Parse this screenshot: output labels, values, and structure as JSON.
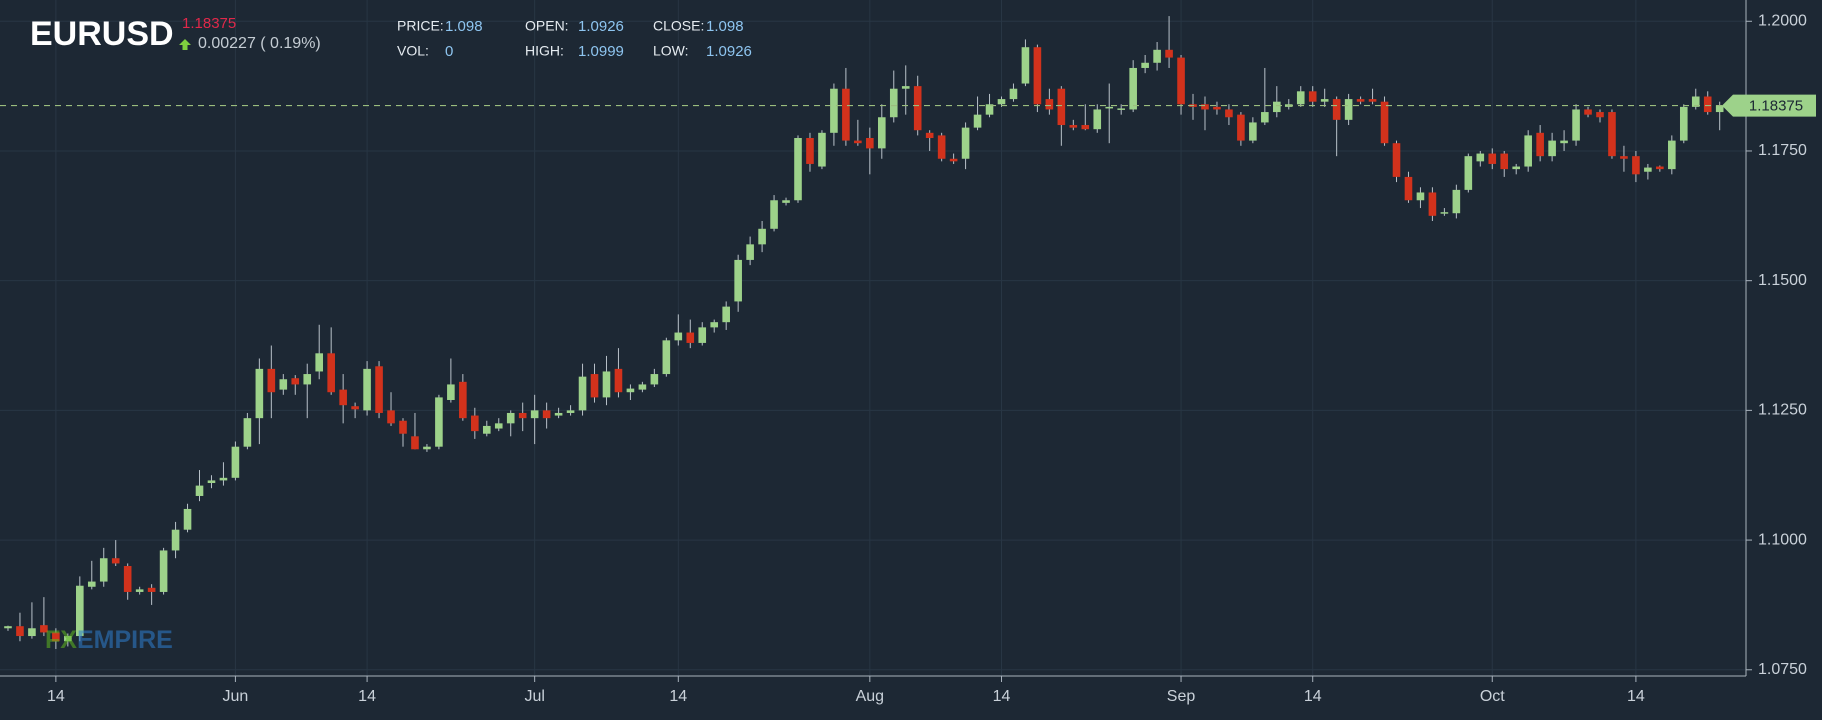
{
  "chart_data": {
    "type": "candlestick",
    "symbol": "EURUSD",
    "last_price": 1.18375,
    "change": "0.00227 ( 0.19%)",
    "stats": [
      {
        "label": "PRICE:",
        "value": "1.098"
      },
      {
        "label": "VOL:",
        "value": "0"
      },
      {
        "label": "OPEN:",
        "value": "1.0926"
      },
      {
        "label": "HIGH:",
        "value": "1.0999"
      },
      {
        "label": "CLOSE:",
        "value": "1.098"
      },
      {
        "label": "LOW:",
        "value": "1.0926"
      }
    ],
    "watermark": [
      "FX",
      "EMPIRE"
    ],
    "up_color": "#9dd28a",
    "down_color": "#d2321c",
    "grid": true,
    "ylim": [
      1.0738,
      1.2041
    ],
    "yticks": [
      {
        "value": 1.075,
        "label": "1.0750"
      },
      {
        "value": 1.1,
        "label": "1.1000"
      },
      {
        "value": 1.125,
        "label": "1.1250"
      },
      {
        "value": 1.15,
        "label": "1.1500"
      },
      {
        "value": 1.175,
        "label": "1.1750"
      },
      {
        "value": 1.2,
        "label": "1.2000"
      }
    ],
    "categories": [
      null,
      null,
      null,
      null,
      "14",
      null,
      null,
      null,
      null,
      null,
      null,
      null,
      null,
      null,
      null,
      null,
      null,
      null,
      null,
      "Jun",
      null,
      null,
      null,
      null,
      null,
      null,
      null,
      null,
      null,
      null,
      "14",
      null,
      null,
      null,
      null,
      null,
      null,
      null,
      null,
      null,
      null,
      null,
      null,
      null,
      "Jul",
      null,
      null,
      null,
      null,
      null,
      null,
      null,
      null,
      null,
      null,
      null,
      "14",
      null,
      null,
      null,
      null,
      null,
      null,
      null,
      null,
      null,
      null,
      null,
      null,
      null,
      null,
      null,
      "Aug",
      null,
      null,
      null,
      null,
      null,
      null,
      null,
      null,
      null,
      null,
      "14",
      null,
      null,
      null,
      null,
      null,
      null,
      null,
      null,
      null,
      null,
      null,
      null,
      null,
      null,
      "Sep",
      null,
      null,
      null,
      null,
      null,
      null,
      null,
      null,
      null,
      null,
      "14",
      null,
      null,
      null,
      null,
      null,
      null,
      null,
      null,
      null,
      null,
      null,
      null,
      null,
      null,
      "Oct",
      null,
      null,
      null,
      null,
      null,
      null,
      null,
      null,
      null,
      null,
      null,
      "14",
      null,
      null,
      null,
      null,
      null,
      null,
      null
    ],
    "open": [
      1.083,
      1.0834,
      1.0815,
      1.0836,
      1.0822,
      1.0805,
      1.0815,
      1.091,
      1.092,
      1.0965,
      1.095,
      1.09,
      1.0908,
      1.09,
      1.098,
      1.102,
      1.1085,
      1.111,
      1.1115,
      1.112,
      1.118,
      1.1235,
      1.133,
      1.129,
      1.1312,
      1.13,
      1.1325,
      1.136,
      1.129,
      1.1258,
      1.125,
      1.1335,
      1.125,
      1.123,
      1.12,
      1.1175,
      1.118,
      1.127,
      1.1305,
      1.124,
      1.1205,
      1.1215,
      1.1225,
      1.1245,
      1.1235,
      1.125,
      1.124,
      1.1245,
      1.125,
      1.132,
      1.1275,
      1.133,
      1.1285,
      1.129,
      1.13,
      1.132,
      1.1385,
      1.14,
      1.138,
      1.141,
      1.142,
      1.146,
      1.154,
      1.157,
      1.16,
      1.165,
      1.1655,
      1.1775,
      1.172,
      1.1785,
      1.187,
      1.177,
      1.1775,
      1.1755,
      1.1815,
      1.187,
      1.1875,
      1.1785,
      1.178,
      1.1735,
      1.1735,
      1.1795,
      1.182,
      1.184,
      1.185,
      1.188,
      1.195,
      1.185,
      1.187,
      1.18,
      1.18,
      1.1792,
      1.1832,
      1.183,
      1.183,
      1.191,
      1.192,
      1.1945,
      1.193,
      1.184,
      1.184,
      1.1835,
      1.183,
      1.182,
      1.177,
      1.1805,
      1.1825,
      1.1835,
      1.184,
      1.1865,
      1.1845,
      1.185,
      1.181,
      1.185,
      1.185,
      1.1845,
      1.1765,
      1.17,
      1.1655,
      1.167,
      1.163,
      1.163,
      1.1675,
      1.173,
      1.1745,
      1.1745,
      1.1715,
      1.172,
      1.1785,
      1.174,
      1.1765,
      1.177,
      1.183,
      1.1825,
      1.1825,
      1.174,
      1.174,
      1.171,
      1.172,
      1.1715,
      1.177,
      1.1835,
      1.1855,
      1.1825
    ],
    "high": [
      1.0835,
      1.086,
      1.088,
      1.089,
      1.083,
      1.082,
      1.093,
      1.096,
      1.0985,
      1.1,
      1.0955,
      1.091,
      1.0915,
      1.0985,
      1.1035,
      1.107,
      1.1135,
      1.1125,
      1.115,
      1.119,
      1.1245,
      1.135,
      1.1375,
      1.132,
      1.1318,
      1.134,
      1.1415,
      1.141,
      1.132,
      1.1265,
      1.1345,
      1.1345,
      1.1285,
      1.1235,
      1.1245,
      1.1185,
      1.128,
      1.135,
      1.132,
      1.1255,
      1.123,
      1.1235,
      1.125,
      1.1265,
      1.128,
      1.1265,
      1.1255,
      1.126,
      1.134,
      1.134,
      1.1355,
      1.137,
      1.13,
      1.1305,
      1.133,
      1.139,
      1.1435,
      1.1425,
      1.142,
      1.1425,
      1.146,
      1.155,
      1.1585,
      1.1615,
      1.1665,
      1.166,
      1.178,
      1.1785,
      1.179,
      1.188,
      1.191,
      1.181,
      1.1795,
      1.184,
      1.1905,
      1.1915,
      1.1895,
      1.179,
      1.1785,
      1.1745,
      1.1805,
      1.1855,
      1.186,
      1.1855,
      1.188,
      1.1965,
      1.1955,
      1.187,
      1.1875,
      1.181,
      1.184,
      1.184,
      1.188,
      1.184,
      1.1925,
      1.1935,
      1.196,
      1.201,
      1.1935,
      1.186,
      1.1855,
      1.1845,
      1.184,
      1.1825,
      1.1815,
      1.191,
      1.1875,
      1.185,
      1.1875,
      1.1875,
      1.187,
      1.1855,
      1.186,
      1.1855,
      1.187,
      1.1855,
      1.177,
      1.171,
      1.168,
      1.168,
      1.164,
      1.1685,
      1.1745,
      1.175,
      1.1755,
      1.175,
      1.1725,
      1.179,
      1.18,
      1.1785,
      1.179,
      1.184,
      1.1835,
      1.183,
      1.183,
      1.176,
      1.175,
      1.1725,
      1.1722,
      1.178,
      1.184,
      1.187,
      1.1865,
      1.1845
    ],
    "low": [
      1.0825,
      1.0805,
      1.081,
      1.0815,
      1.079,
      1.0795,
      1.0805,
      1.0905,
      1.091,
      1.095,
      1.0885,
      1.0895,
      1.0875,
      1.0895,
      1.0965,
      1.1015,
      1.1075,
      1.11,
      1.1105,
      1.1115,
      1.1175,
      1.1185,
      1.1235,
      1.128,
      1.128,
      1.1235,
      1.131,
      1.128,
      1.1225,
      1.1235,
      1.124,
      1.1235,
      1.122,
      1.118,
      1.1175,
      1.117,
      1.1175,
      1.1265,
      1.123,
      1.1195,
      1.12,
      1.121,
      1.12,
      1.121,
      1.1185,
      1.1215,
      1.1235,
      1.124,
      1.124,
      1.1265,
      1.126,
      1.1275,
      1.127,
      1.1285,
      1.1295,
      1.1315,
      1.1375,
      1.137,
      1.1375,
      1.14,
      1.1405,
      1.144,
      1.153,
      1.1555,
      1.1595,
      1.1645,
      1.165,
      1.171,
      1.1715,
      1.176,
      1.176,
      1.176,
      1.1705,
      1.1735,
      1.1805,
      1.182,
      1.178,
      1.175,
      1.173,
      1.1725,
      1.1715,
      1.179,
      1.1815,
      1.1835,
      1.1845,
      1.1875,
      1.1825,
      1.182,
      1.176,
      1.179,
      1.179,
      1.1785,
      1.1765,
      1.182,
      1.1825,
      1.19,
      1.1905,
      1.191,
      1.182,
      1.181,
      1.179,
      1.182,
      1.18,
      1.176,
      1.1765,
      1.18,
      1.1815,
      1.183,
      1.1835,
      1.1835,
      1.1835,
      1.174,
      1.18,
      1.184,
      1.184,
      1.176,
      1.169,
      1.165,
      1.164,
      1.1615,
      1.1625,
      1.162,
      1.167,
      1.172,
      1.1715,
      1.17,
      1.1705,
      1.171,
      1.173,
      1.173,
      1.175,
      1.176,
      1.1815,
      1.1805,
      1.1735,
      1.171,
      1.169,
      1.1695,
      1.171,
      1.1705,
      1.1765,
      1.183,
      1.182,
      1.179
    ],
    "close": [
      1.0834,
      1.0815,
      1.083,
      1.0822,
      1.0805,
      1.0815,
      1.0912,
      1.092,
      1.0965,
      1.0955,
      1.09,
      1.0905,
      1.09,
      1.098,
      1.102,
      1.106,
      1.1105,
      1.1115,
      1.112,
      1.118,
      1.1235,
      1.133,
      1.1285,
      1.131,
      1.13,
      1.132,
      1.136,
      1.1285,
      1.126,
      1.1252,
      1.133,
      1.1245,
      1.1225,
      1.1205,
      1.1175,
      1.118,
      1.1275,
      1.13,
      1.1235,
      1.121,
      1.122,
      1.1225,
      1.1245,
      1.1235,
      1.125,
      1.1235,
      1.1245,
      1.125,
      1.1315,
      1.1275,
      1.1325,
      1.1285,
      1.1292,
      1.13,
      1.132,
      1.1385,
      1.14,
      1.138,
      1.141,
      1.142,
      1.145,
      1.154,
      1.157,
      1.16,
      1.1655,
      1.1655,
      1.1775,
      1.1725,
      1.1785,
      1.187,
      1.177,
      1.1765,
      1.1755,
      1.1815,
      1.187,
      1.1875,
      1.179,
      1.1775,
      1.1735,
      1.173,
      1.1795,
      1.182,
      1.184,
      1.185,
      1.187,
      1.195,
      1.184,
      1.183,
      1.18,
      1.1795,
      1.1792,
      1.183,
      1.1835,
      1.1832,
      1.191,
      1.192,
      1.1945,
      1.193,
      1.184,
      1.1835,
      1.183,
      1.183,
      1.1815,
      1.177,
      1.1805,
      1.1825,
      1.1845,
      1.184,
      1.1865,
      1.1845,
      1.185,
      1.181,
      1.185,
      1.1845,
      1.1845,
      1.1765,
      1.17,
      1.1655,
      1.167,
      1.1625,
      1.1632,
      1.1675,
      1.174,
      1.1745,
      1.1725,
      1.1715,
      1.172,
      1.178,
      1.174,
      1.177,
      1.177,
      1.183,
      1.182,
      1.1815,
      1.174,
      1.1735,
      1.1705,
      1.1718,
      1.1715,
      1.177,
      1.1835,
      1.1855,
      1.1825,
      1.1838
    ]
  }
}
